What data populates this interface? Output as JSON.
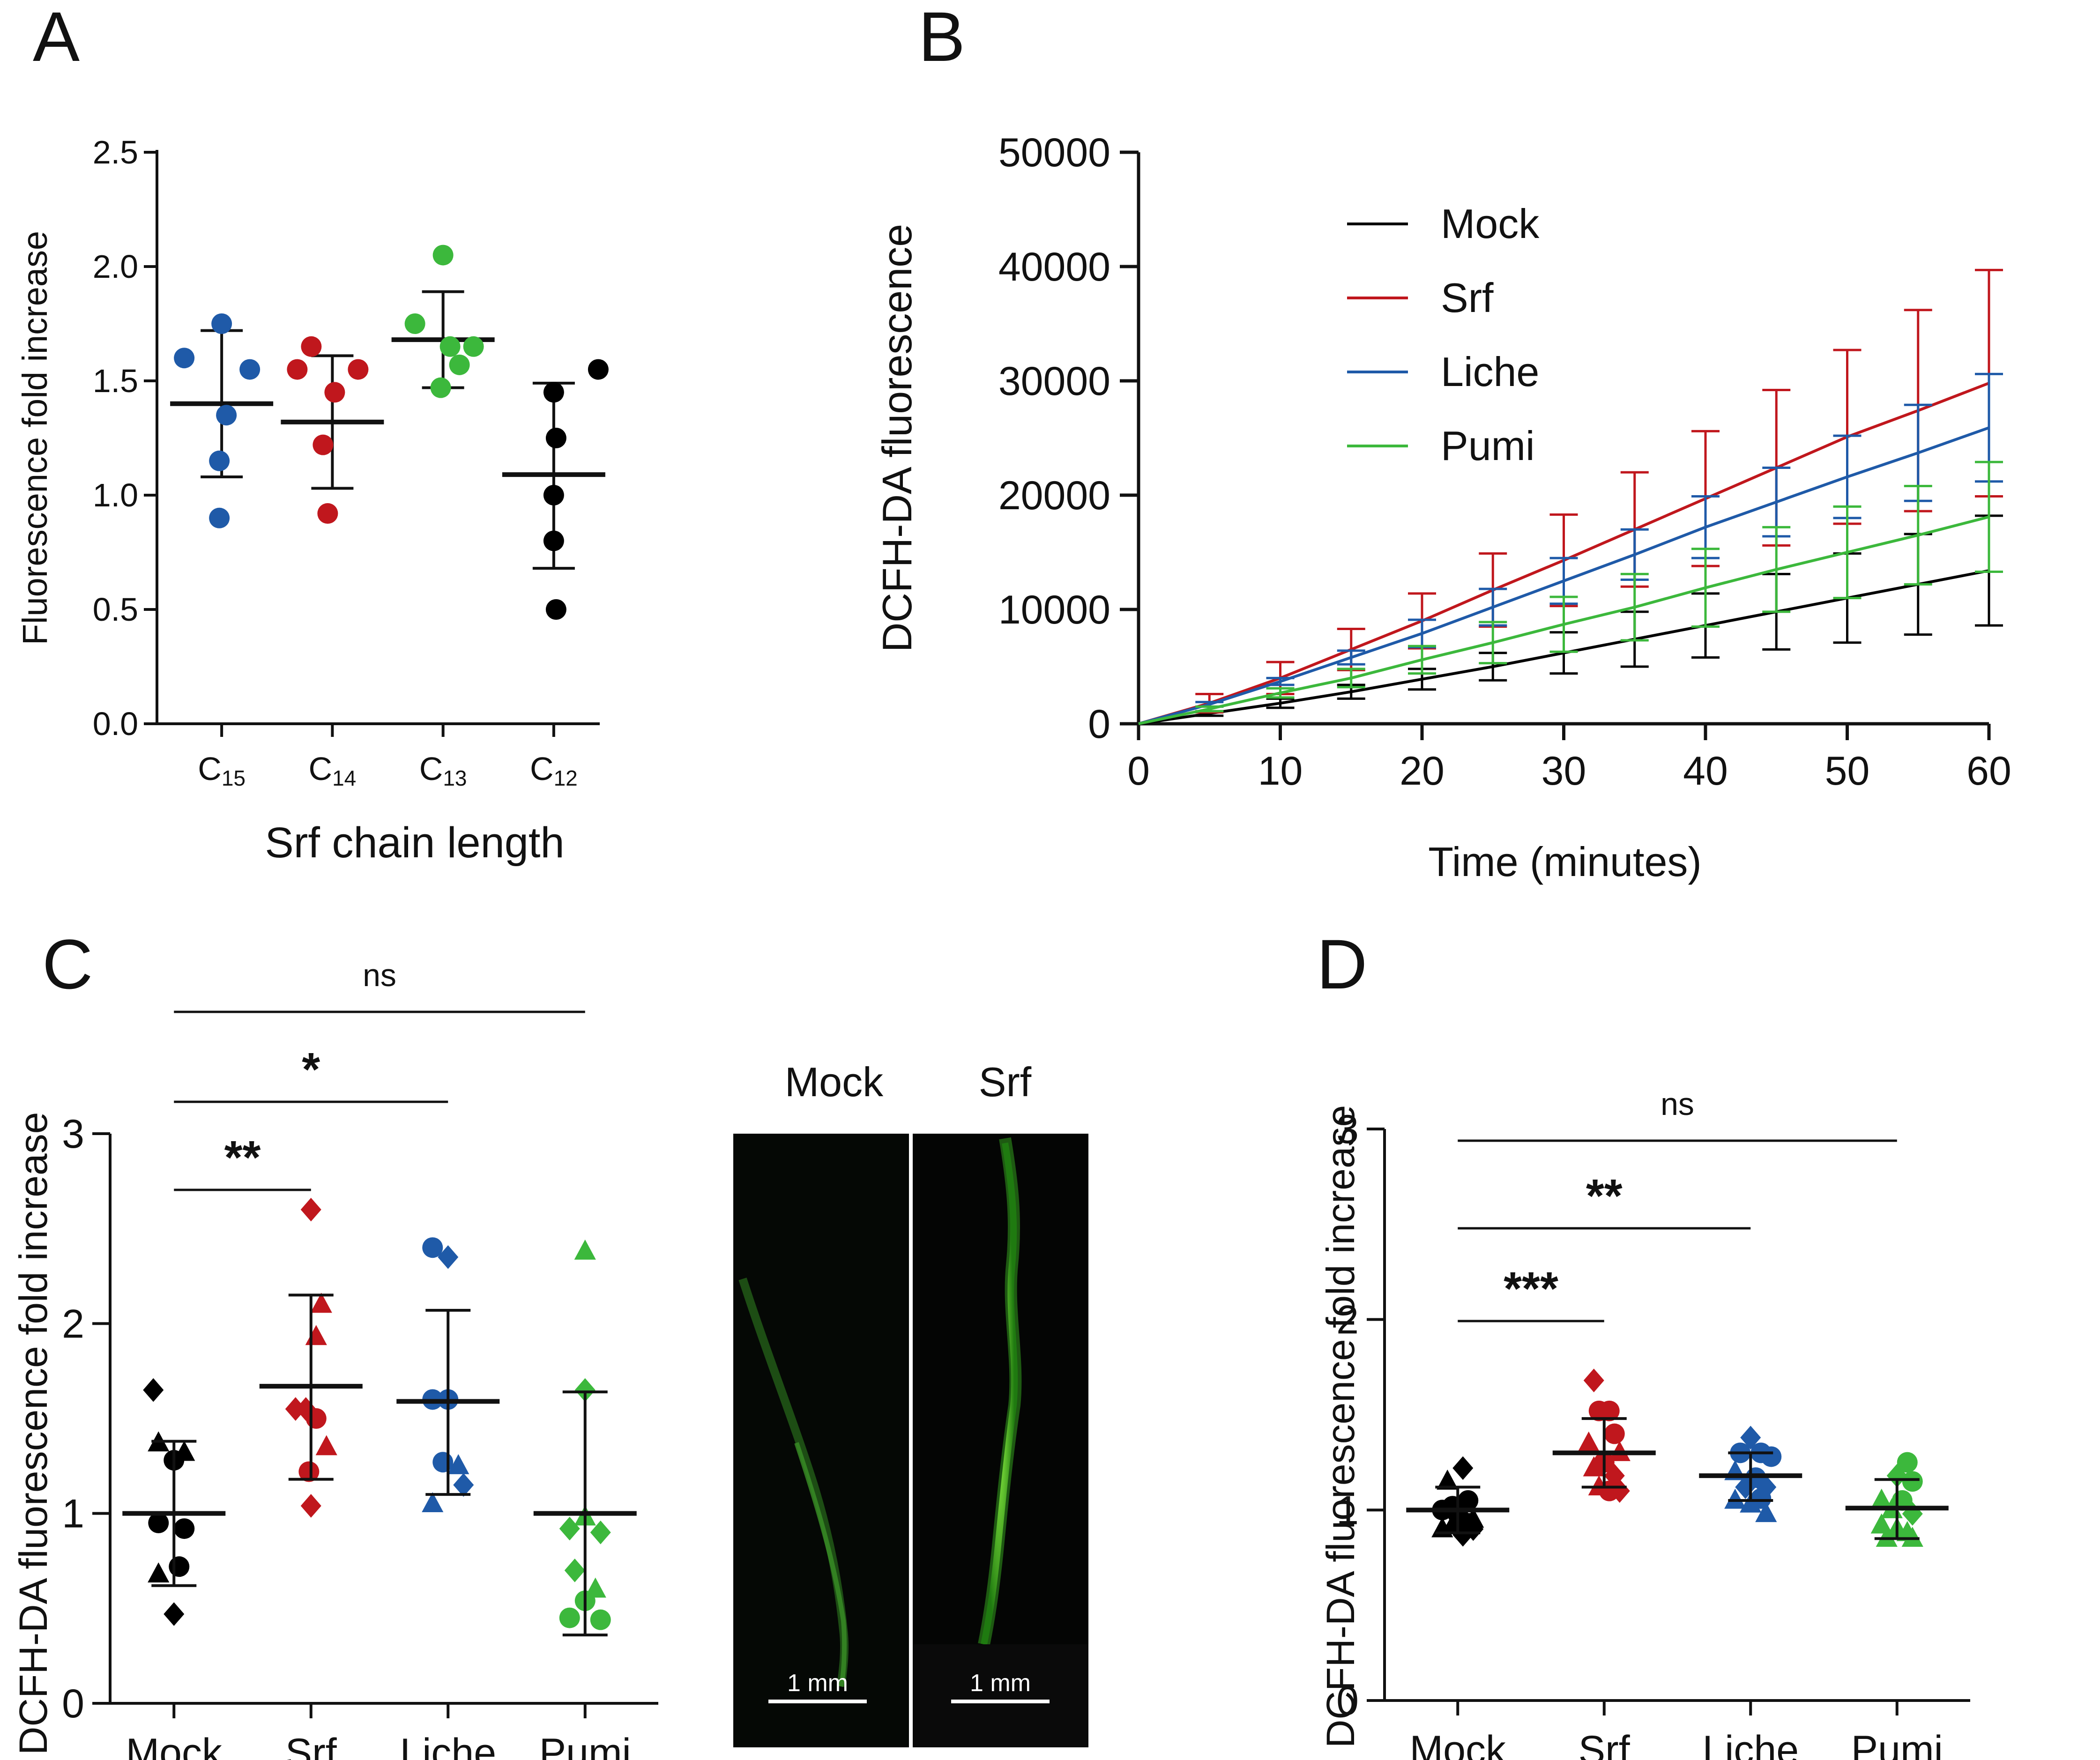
{
  "colors": {
    "black": "#000000",
    "red": "#c0171d",
    "blue": "#1f5aa8",
    "green": "#3cb83c",
    "axis": "#111111"
  },
  "panels": {
    "A": {
      "label": "A"
    },
    "B": {
      "label": "B"
    },
    "C": {
      "label": "C",
      "image_mock_label": "Mock",
      "image_srf_label": "Srf",
      "scale_bar_text": "1 mm"
    },
    "D": {
      "label": "D"
    }
  },
  "chart_data": [
    {
      "panel": "A",
      "type": "scatter",
      "xlabel": "Srf chain length",
      "ylabel": "Fluorescence fold increase",
      "ylim": [
        0,
        2.5
      ],
      "yticks": [
        "0.0",
        "0.5",
        "1.0",
        "1.5",
        "2.0",
        "2.5"
      ],
      "categories": [
        {
          "label": "C",
          "sub": "15",
          "color": "#1f5aa8",
          "points": [
            1.75,
            1.6,
            1.55,
            1.35,
            1.15,
            0.9
          ],
          "mean": 1.4,
          "sd_low": 1.08,
          "sd_high": 1.72
        },
        {
          "label": "C",
          "sub": "14",
          "color": "#c0171d",
          "points": [
            1.65,
            1.55,
            1.55,
            1.45,
            1.22,
            0.92
          ],
          "mean": 1.32,
          "sd_low": 1.03,
          "sd_high": 1.61
        },
        {
          "label": "C",
          "sub": "13",
          "color": "#3cb83c",
          "points": [
            2.05,
            1.75,
            1.65,
            1.65,
            1.57,
            1.47
          ],
          "mean": 1.68,
          "sd_low": 1.47,
          "sd_high": 1.89
        },
        {
          "label": "C",
          "sub": "12",
          "color": "#000000",
          "points": [
            1.55,
            1.45,
            1.25,
            1.0,
            0.8,
            0.5
          ],
          "mean": 1.09,
          "sd_low": 0.68,
          "sd_high": 1.49
        }
      ]
    },
    {
      "panel": "B",
      "type": "line",
      "xlabel": "Time (minutes)",
      "ylabel": "DCFH-DA fluorescence",
      "xlim": [
        0,
        60
      ],
      "ylim": [
        0,
        50000
      ],
      "xticks": [
        "0",
        "10",
        "20",
        "30",
        "40",
        "50",
        "60"
      ],
      "yticks": [
        "0",
        "10000",
        "20000",
        "30000",
        "40000",
        "50000"
      ],
      "x": [
        0,
        5,
        10,
        15,
        20,
        25,
        30,
        35,
        40,
        45,
        50,
        55,
        60
      ],
      "series": [
        {
          "name": "Mock",
          "color": "#000000",
          "values": [
            0,
            900,
            1800,
            2800,
            3900,
            5000,
            6200,
            7400,
            8600,
            9800,
            11000,
            12200,
            13400
          ],
          "err": [
            0,
            200,
            400,
            600,
            900,
            1200,
            1800,
            2400,
            2800,
            3300,
            3900,
            4400,
            4800
          ]
        },
        {
          "name": "Srf",
          "color": "#c0171d",
          "values": [
            0,
            1800,
            4000,
            6500,
            9000,
            11700,
            14300,
            17000,
            19700,
            22400,
            25100,
            27400,
            29800
          ],
          "err": [
            0,
            800,
            1400,
            1800,
            2400,
            3200,
            4000,
            5000,
            5900,
            6800,
            7600,
            8800,
            9900
          ]
        },
        {
          "name": "Liche",
          "color": "#1f5aa8",
          "values": [
            0,
            1700,
            3700,
            5800,
            7900,
            10200,
            12500,
            14800,
            17200,
            19400,
            21600,
            23700,
            25900
          ],
          "err": [
            0,
            200,
            300,
            600,
            1200,
            1600,
            2000,
            2200,
            2700,
            3000,
            3600,
            4200,
            4700
          ]
        },
        {
          "name": "Pumi",
          "color": "#3cb83c",
          "values": [
            0,
            1300,
            2700,
            4000,
            5600,
            7100,
            8700,
            10200,
            11900,
            13500,
            15000,
            16500,
            18100
          ],
          "err": [
            0,
            200,
            400,
            800,
            1200,
            1800,
            2400,
            2900,
            3400,
            3700,
            4000,
            4300,
            4800
          ]
        }
      ]
    },
    {
      "panel": "C",
      "type": "scatter",
      "xlabel": "",
      "ylabel": "DCFH-DA  fluorescence fold increase",
      "ylim": [
        0,
        3
      ],
      "yticks": [
        "0",
        "1",
        "2",
        "3"
      ],
      "categories": [
        {
          "label": "Mock",
          "color": "#000000",
          "mean": 1.0,
          "sd_low": 0.62,
          "sd_high": 1.38,
          "points": [
            {
              "x": -0.2,
              "y": 1.65,
              "s": "diamond"
            },
            {
              "x": -0.15,
              "y": 1.37,
              "s": "triangle"
            },
            {
              "x": 0.1,
              "y": 1.32,
              "s": "triangle"
            },
            {
              "x": 0.0,
              "y": 1.28,
              "s": "circle"
            },
            {
              "x": -0.15,
              "y": 0.95,
              "s": "circle"
            },
            {
              "x": 0.1,
              "y": 0.92,
              "s": "circle"
            },
            {
              "x": 0.05,
              "y": 0.72,
              "s": "circle"
            },
            {
              "x": -0.15,
              "y": 0.68,
              "s": "triangle"
            },
            {
              "x": 0.0,
              "y": 0.47,
              "s": "diamond"
            }
          ]
        },
        {
          "label": "Srf",
          "color": "#c0171d",
          "mean": 1.67,
          "sd_low": 1.18,
          "sd_high": 2.15,
          "points": [
            {
              "x": 0.0,
              "y": 2.6,
              "s": "diamond"
            },
            {
              "x": 0.1,
              "y": 2.1,
              "s": "triangle"
            },
            {
              "x": 0.05,
              "y": 1.93,
              "s": "triangle"
            },
            {
              "x": -0.15,
              "y": 1.55,
              "s": "diamond"
            },
            {
              "x": -0.05,
              "y": 1.55,
              "s": "diamond"
            },
            {
              "x": 0.05,
              "y": 1.5,
              "s": "circle"
            },
            {
              "x": -0.02,
              "y": 1.22,
              "s": "circle"
            },
            {
              "x": 0.15,
              "y": 1.35,
              "s": "triangle"
            },
            {
              "x": 0.0,
              "y": 1.04,
              "s": "diamond"
            }
          ]
        },
        {
          "label": "Liche",
          "color": "#1f5aa8",
          "mean": 1.59,
          "sd_low": 1.1,
          "sd_high": 2.07,
          "points": [
            {
              "x": -0.15,
              "y": 2.4,
              "s": "circle"
            },
            {
              "x": 0.0,
              "y": 2.35,
              "s": "diamond"
            },
            {
              "x": -0.15,
              "y": 1.6,
              "s": "circle"
            },
            {
              "x": 0.0,
              "y": 1.6,
              "s": "circle"
            },
            {
              "x": -0.05,
              "y": 1.27,
              "s": "circle"
            },
            {
              "x": 0.1,
              "y": 1.25,
              "s": "triangle"
            },
            {
              "x": -0.15,
              "y": 1.05,
              "s": "triangle"
            },
            {
              "x": 0.15,
              "y": 1.15,
              "s": "diamond"
            }
          ]
        },
        {
          "label": "Pumi",
          "color": "#3cb83c",
          "mean": 1.0,
          "sd_low": 0.36,
          "sd_high": 1.64,
          "points": [
            {
              "x": 0.0,
              "y": 2.38,
              "s": "triangle"
            },
            {
              "x": 0.0,
              "y": 1.65,
              "s": "diamond"
            },
            {
              "x": 0.0,
              "y": 0.98,
              "s": "triangle"
            },
            {
              "x": -0.15,
              "y": 0.92,
              "s": "diamond"
            },
            {
              "x": 0.15,
              "y": 0.9,
              "s": "diamond"
            },
            {
              "x": -0.1,
              "y": 0.7,
              "s": "diamond"
            },
            {
              "x": 0.1,
              "y": 0.6,
              "s": "triangle"
            },
            {
              "x": -0.15,
              "y": 0.45,
              "s": "circle"
            },
            {
              "x": 0.0,
              "y": 0.54,
              "s": "circle"
            },
            {
              "x": 0.15,
              "y": 0.44,
              "s": "circle"
            }
          ]
        }
      ],
      "annotations": [
        {
          "from": "Mock",
          "to": "Srf",
          "text": "**",
          "level": 1
        },
        {
          "from": "Mock",
          "to": "Liche",
          "text": "*",
          "level": 2
        },
        {
          "from": "Mock",
          "to": "Pumi",
          "text": "ns",
          "level": 3
        }
      ]
    },
    {
      "panel": "D",
      "type": "scatter",
      "xlabel": "",
      "ylabel": "DCFH-DA  fluorescence fold increase",
      "ylim": [
        0,
        3
      ],
      "yticks": [
        "0",
        "1",
        "2",
        "3"
      ],
      "categories": [
        {
          "label": "Mock",
          "color": "#000000",
          "mean": 1.0,
          "sd_low": 0.88,
          "sd_high": 1.12,
          "points": [
            {
              "x": 0.05,
              "y": 1.22,
              "s": "diamond"
            },
            {
              "x": -0.1,
              "y": 1.15,
              "s": "triangle"
            },
            {
              "x": 0.1,
              "y": 1.05,
              "s": "circle"
            },
            {
              "x": -0.15,
              "y": 1.0,
              "s": "circle"
            },
            {
              "x": 0.0,
              "y": 0.98,
              "s": "circle"
            },
            {
              "x": -0.05,
              "y": 0.92,
              "s": "triangle"
            },
            {
              "x": 0.15,
              "y": 0.9,
              "s": "diamond"
            },
            {
              "x": -0.15,
              "y": 0.9,
              "s": "triangle"
            },
            {
              "x": 0.05,
              "y": 0.87,
              "s": "diamond"
            },
            {
              "x": 0.15,
              "y": 0.95,
              "s": "triangle"
            },
            {
              "x": -0.05,
              "y": 1.02,
              "s": "circle"
            },
            {
              "x": 0.1,
              "y": 0.93,
              "s": "circle"
            }
          ]
        },
        {
          "label": "Srf",
          "color": "#c0171d",
          "mean": 1.3,
          "sd_low": 1.12,
          "sd_high": 1.48,
          "points": [
            {
              "x": -0.1,
              "y": 1.68,
              "s": "diamond"
            },
            {
              "x": -0.05,
              "y": 1.52,
              "s": "circle"
            },
            {
              "x": 0.05,
              "y": 1.52,
              "s": "circle"
            },
            {
              "x": 0.1,
              "y": 1.4,
              "s": "circle"
            },
            {
              "x": -0.15,
              "y": 1.35,
              "s": "triangle"
            },
            {
              "x": 0.15,
              "y": 1.3,
              "s": "triangle"
            },
            {
              "x": 0.0,
              "y": 1.25,
              "s": "circle"
            },
            {
              "x": -0.1,
              "y": 1.22,
              "s": "triangle"
            },
            {
              "x": 0.1,
              "y": 1.18,
              "s": "diamond"
            },
            {
              "x": -0.05,
              "y": 1.12,
              "s": "triangle"
            },
            {
              "x": 0.15,
              "y": 1.1,
              "s": "diamond"
            },
            {
              "x": 0.05,
              "y": 1.1,
              "s": "circle"
            }
          ]
        },
        {
          "label": "Liche",
          "color": "#1f5aa8",
          "mean": 1.18,
          "sd_low": 1.05,
          "sd_high": 1.3,
          "points": [
            {
              "x": 0.0,
              "y": 1.38,
              "s": "diamond"
            },
            {
              "x": -0.1,
              "y": 1.3,
              "s": "circle"
            },
            {
              "x": 0.1,
              "y": 1.3,
              "s": "circle"
            },
            {
              "x": 0.2,
              "y": 1.28,
              "s": "circle"
            },
            {
              "x": -0.15,
              "y": 1.2,
              "s": "triangle"
            },
            {
              "x": 0.05,
              "y": 1.17,
              "s": "circle"
            },
            {
              "x": -0.05,
              "y": 1.12,
              "s": "diamond"
            },
            {
              "x": 0.15,
              "y": 1.12,
              "s": "diamond"
            },
            {
              "x": -0.15,
              "y": 1.05,
              "s": "triangle"
            },
            {
              "x": 0.0,
              "y": 1.03,
              "s": "triangle"
            },
            {
              "x": 0.1,
              "y": 1.06,
              "s": "circle"
            },
            {
              "x": 0.15,
              "y": 0.98,
              "s": "triangle"
            }
          ]
        },
        {
          "label": "Pumi",
          "color": "#3cb83c",
          "mean": 1.01,
          "sd_low": 0.85,
          "sd_high": 1.16,
          "points": [
            {
              "x": 0.1,
              "y": 1.25,
              "s": "circle"
            },
            {
              "x": 0.0,
              "y": 1.18,
              "s": "diamond"
            },
            {
              "x": 0.15,
              "y": 1.15,
              "s": "circle"
            },
            {
              "x": -0.15,
              "y": 1.05,
              "s": "triangle"
            },
            {
              "x": 0.05,
              "y": 1.05,
              "s": "circle"
            },
            {
              "x": -0.05,
              "y": 1.0,
              "s": "triangle"
            },
            {
              "x": 0.15,
              "y": 0.98,
              "s": "diamond"
            },
            {
              "x": -0.15,
              "y": 0.92,
              "s": "triangle"
            },
            {
              "x": 0.0,
              "y": 0.9,
              "s": "triangle"
            },
            {
              "x": 0.1,
              "y": 0.88,
              "s": "triangle"
            },
            {
              "x": -0.1,
              "y": 0.85,
              "s": "triangle"
            },
            {
              "x": 0.15,
              "y": 0.85,
              "s": "triangle"
            }
          ]
        }
      ],
      "annotations": [
        {
          "from": "Mock",
          "to": "Srf",
          "text": "***",
          "level": 1
        },
        {
          "from": "Mock",
          "to": "Liche",
          "text": "**",
          "level": 2
        },
        {
          "from": "Mock",
          "to": "Pumi",
          "text": "ns",
          "level": 3
        }
      ]
    }
  ]
}
